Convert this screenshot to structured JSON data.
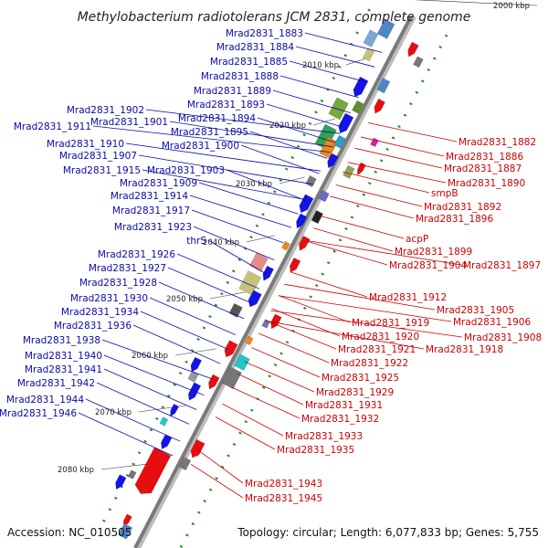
{
  "title": "Methylobacterium radiotolerans JCM 2831, complete genome",
  "footer": {
    "accession": "Accession: NC_010505",
    "summary": "Topology: circular; Length: 6,077,833 bp; Genes: 5,755"
  },
  "kbp_ticks": [
    "2000 kbp",
    "2010 kbp",
    "2020 kbp",
    "2030 kbp",
    "2040 kbp",
    "2050 kbp",
    "2060 kbp",
    "2070 kbp",
    "2080 kbp"
  ],
  "left_labels": [
    "Mrad2831_1883",
    "Mrad2831_1884",
    "Mrad2831_1885",
    "Mrad2831_1888",
    "Mrad2831_1889",
    "Mrad2831_1893",
    "Mrad2831_1902",
    "Mrad2831_1894",
    "Mrad2831_1901",
    "Mrad2831_1911",
    "Mrad2831_1895",
    "Mrad2831_1910",
    "Mrad2831_1900",
    "Mrad2831_1907",
    "Mrad2831_1915",
    "Mrad2831_1903",
    "Mrad2831_1909",
    "Mrad2831_1914",
    "Mrad2831_1917",
    "Mrad2831_1923",
    "thrS",
    "Mrad2831_1926",
    "Mrad2831_1927",
    "Mrad2831_1928",
    "Mrad2831_1930",
    "Mrad2831_1934",
    "Mrad2831_1936",
    "Mrad2831_1938",
    "Mrad2831_1940",
    "Mrad2831_1941",
    "Mrad2831_1942",
    "Mrad2831_1944",
    "Mrad2831_1946"
  ],
  "right_labels": [
    "Mrad2831_1882",
    "Mrad2831_1886",
    "Mrad2831_1887",
    "Mrad2831_1890",
    "smpB",
    "Mrad2831_1892",
    "Mrad2831_1896",
    "acpP",
    "Mrad2831_1899",
    "Mrad2831_1904",
    "Mrad2831_1897",
    "Mrad2831_1912",
    "Mrad2831_1905",
    "Mrad2831_1906",
    "Mrad2831_1908",
    "Mrad2831_1919",
    "Mrad2831_1920",
    "Mrad2831_1918",
    "Mrad2831_1921",
    "Mrad2831_1922",
    "Mrad2831_1925",
    "Mrad2831_1929",
    "Mrad2831_1931",
    "Mrad2831_1932",
    "Mrad2831_1933",
    "Mrad2831_1935",
    "Mrad2831_1943",
    "Mrad2831_1945"
  ],
  "colors": {
    "forward_strand": "#1414e6",
    "reverse_strand": "#e60e0e",
    "backbone": "#7a7a7a",
    "gc_skew": "#2a8a2a",
    "left_label": "#0a0aa8",
    "right_label": "#cc0000"
  }
}
